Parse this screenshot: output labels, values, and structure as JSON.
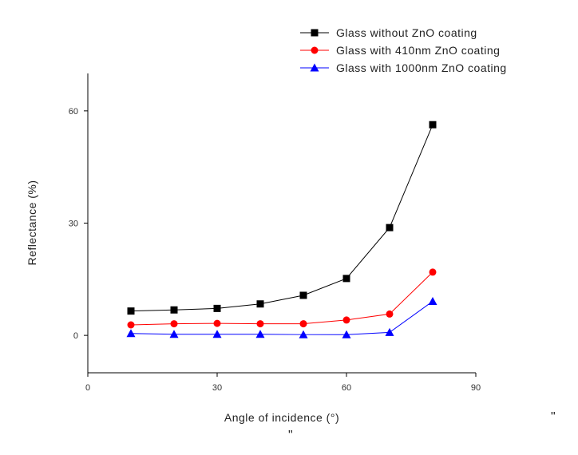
{
  "chart_data": {
    "type": "line",
    "xlabel": "Angle of incidence (°)",
    "ylabel": "Reflectance (%)",
    "xlim": [
      0,
      90
    ],
    "ylim": [
      -10,
      70
    ],
    "xticks": [
      0,
      30,
      60,
      90
    ],
    "yticks": [
      0,
      30,
      60
    ],
    "grid": false,
    "legend_position": "top-right",
    "x": [
      10,
      20,
      30,
      40,
      50,
      60,
      70,
      80
    ],
    "series": [
      {
        "name": "Glass without ZnO coating",
        "color": "#000000",
        "marker": "square",
        "values": [
          6.5,
          6.8,
          7.2,
          8.4,
          10.7,
          15.2,
          28.8,
          56.3
        ]
      },
      {
        "name": "Glass with 410nm ZnO coating",
        "color": "#ff0000",
        "marker": "circle",
        "values": [
          2.8,
          3.1,
          3.2,
          3.1,
          3.1,
          4.1,
          5.7,
          16.9
        ]
      },
      {
        "name": "Glass with 1000nm ZnO coating",
        "color": "#0000ff",
        "marker": "triangle",
        "values": [
          0.5,
          0.3,
          0.3,
          0.3,
          0.2,
          0.2,
          0.8,
          9.1
        ]
      }
    ]
  },
  "stray_marks": [
    "\"",
    "\""
  ]
}
